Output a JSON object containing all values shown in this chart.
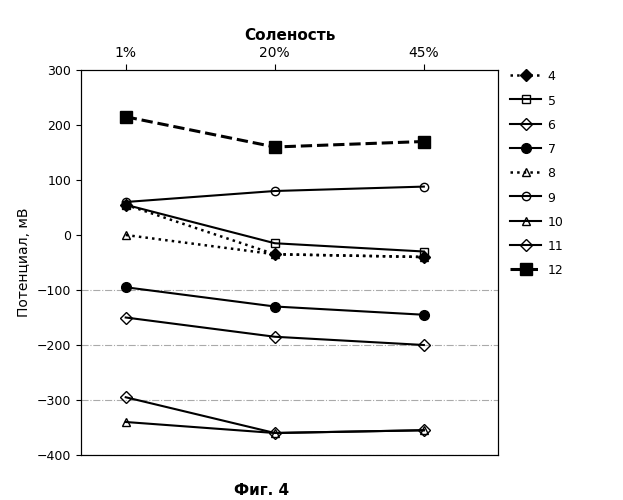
{
  "x_values": [
    0,
    1,
    2
  ],
  "x_tick_positions": [
    0,
    1,
    2
  ],
  "x_tick_labels": [
    "1%",
    "20%",
    "45%"
  ],
  "x_label_top": "Соленость",
  "y_label": "Потенциал, мВ",
  "caption": "Фиг. 4",
  "ylim": [
    -400,
    300
  ],
  "xlim": [
    -0.3,
    2.5
  ],
  "yticks": [
    -400,
    -300,
    -200,
    -100,
    0,
    100,
    200,
    300
  ],
  "series": [
    {
      "label": "4",
      "y": [
        55,
        -35,
        -40
      ],
      "color": "#000000",
      "linestyle": "dotted",
      "marker": "D",
      "markersize": 6,
      "markerfacecolor": "#000000",
      "linewidth": 1.8
    },
    {
      "label": "5",
      "y": [
        55,
        -15,
        -30
      ],
      "color": "#000000",
      "linestyle": "solid",
      "marker": "s",
      "markersize": 6,
      "markerfacecolor": "none",
      "linewidth": 1.5
    },
    {
      "label": "6",
      "y": [
        -150,
        -185,
        -200
      ],
      "color": "#000000",
      "linestyle": "solid",
      "marker": "D",
      "markersize": 6,
      "markerfacecolor": "none",
      "linewidth": 1.5
    },
    {
      "label": "7",
      "y": [
        -95,
        -130,
        -145
      ],
      "color": "#000000",
      "linestyle": "solid",
      "marker": "o",
      "markersize": 7,
      "markerfacecolor": "#000000",
      "linewidth": 1.5
    },
    {
      "label": "8",
      "y": [
        0,
        -35,
        -40
      ],
      "color": "#000000",
      "linestyle": "dotted",
      "marker": "^",
      "markersize": 6,
      "markerfacecolor": "none",
      "linewidth": 1.8
    },
    {
      "label": "9",
      "y": [
        60,
        80,
        88
      ],
      "color": "#000000",
      "linestyle": "solid",
      "marker": "o",
      "markersize": 6,
      "markerfacecolor": "none",
      "linewidth": 1.5
    },
    {
      "label": "10",
      "y": [
        -340,
        -360,
        -355
      ],
      "color": "#000000",
      "linestyle": "solid",
      "marker": "^",
      "markersize": 6,
      "markerfacecolor": "none",
      "linewidth": 1.5
    },
    {
      "label": "11",
      "y": [
        -295,
        -360,
        -355
      ],
      "color": "#000000",
      "linestyle": "solid",
      "marker": "D",
      "markersize": 6,
      "markerfacecolor": "none",
      "linewidth": 1.5
    },
    {
      "label": "12",
      "y": [
        215,
        160,
        170
      ],
      "color": "#000000",
      "linestyle": "dashed",
      "marker": "s",
      "markersize": 8,
      "markerfacecolor": "#000000",
      "linewidth": 2.2
    }
  ],
  "hlines": [
    {
      "y": -100,
      "xmin": -0.3,
      "xmax": 0.55,
      "color": "#aaaaaa",
      "linestyle": "dashdot",
      "linewidth": 0.8
    },
    {
      "y": -200,
      "xmin": -0.3,
      "xmax": 0.55,
      "color": "#aaaaaa",
      "linestyle": "dashdot",
      "linewidth": 0.8
    },
    {
      "y": -300,
      "xmin": -0.3,
      "xmax": 0.65,
      "color": "#aaaaaa",
      "linestyle": "dashdot",
      "linewidth": 0.8
    },
    {
      "y": -400,
      "xmin": -0.3,
      "xmax": 2.5,
      "color": "#aaaaaa",
      "linestyle": "dashdot",
      "linewidth": 0.8
    }
  ]
}
